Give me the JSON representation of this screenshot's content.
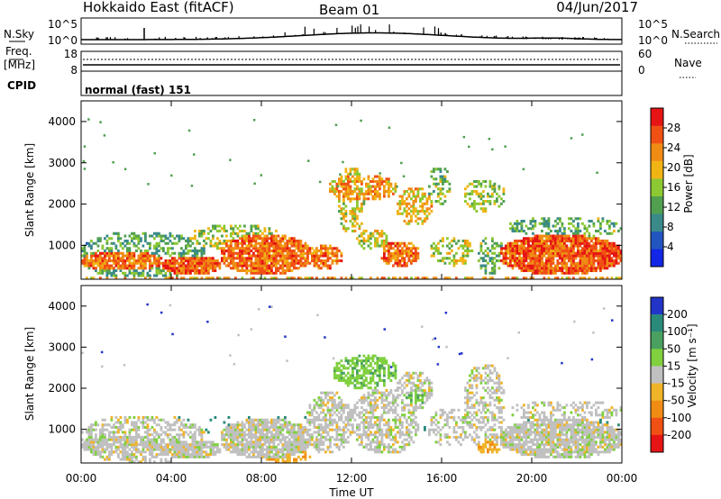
{
  "header": {
    "radar": "Hokkaido East (fitACF)",
    "beam": "Beam 01",
    "date": "04/Jun/2017"
  },
  "status_panel": {
    "nsky_label": "N.Sky",
    "nsky_ticks": [
      "10^5",
      "10^0"
    ],
    "nsearch_label": "N.Search",
    "nsearch_ticks": [
      "10^5",
      "10^0"
    ],
    "freq_label": "Freq.",
    "freq_unit": "[MHz]",
    "freq_ticks": [
      "18",
      "8"
    ],
    "nave_label": "Nave",
    "nave_ticks": [
      "60",
      "0"
    ],
    "cpid_label": "CPID",
    "cpid_value": "normal (fast) 151"
  },
  "chart_data": [
    {
      "type": "heatmap",
      "name": "Power",
      "ylabel": "Slant Range [km]",
      "xlabel": "",
      "x_tick_labels": [
        "00:00",
        "04:00",
        "08:00",
        "12:00",
        "16:00",
        "20:00",
        "00:00"
      ],
      "x_range_hours": [
        0,
        24
      ],
      "y_ticks": [
        1000,
        2000,
        3000,
        4000
      ],
      "y_range": [
        180,
        4500
      ],
      "colorbar": {
        "label": "Power [dB]",
        "ticks": [
          "4",
          "8",
          "12",
          "16",
          "20",
          "24",
          "28"
        ],
        "tick_values": [
          4,
          8,
          12,
          16,
          20,
          24,
          28
        ],
        "range": [
          0,
          32
        ],
        "colors": [
          "#1226e6",
          "#2255c0",
          "#3a8a8a",
          "#50a050",
          "#8cc832",
          "#f0b414",
          "#f08c14",
          "#f05014",
          "#e61414"
        ]
      },
      "blobs": [
        {
          "t0": 0.0,
          "t1": 5.5,
          "r0": 180,
          "r1": 1350,
          "p": 12,
          "d": 0.45
        },
        {
          "t0": 0.0,
          "t1": 3.6,
          "r0": 400,
          "r1": 850,
          "p": 25,
          "d": 0.85
        },
        {
          "t0": 3.6,
          "t1": 6.2,
          "r0": 300,
          "r1": 750,
          "p": 26,
          "d": 0.9
        },
        {
          "t0": 4.8,
          "t1": 9.0,
          "r0": 900,
          "r1": 1500,
          "p": 16,
          "d": 0.5
        },
        {
          "t0": 6.2,
          "t1": 10.2,
          "r0": 300,
          "r1": 1250,
          "p": 25,
          "d": 0.85
        },
        {
          "t0": 10.0,
          "t1": 11.6,
          "r0": 450,
          "r1": 1000,
          "p": 24,
          "d": 0.75
        },
        {
          "t0": 11.4,
          "t1": 12.6,
          "r0": 1300,
          "r1": 2900,
          "p": 18,
          "d": 0.45
        },
        {
          "t0": 11.0,
          "t1": 14.0,
          "r0": 2100,
          "r1": 2700,
          "p": 22,
          "d": 0.65
        },
        {
          "t0": 12.2,
          "t1": 13.6,
          "r0": 900,
          "r1": 1400,
          "p": 18,
          "d": 0.5
        },
        {
          "t0": 13.3,
          "t1": 15.0,
          "r0": 500,
          "r1": 1100,
          "p": 25,
          "d": 0.8
        },
        {
          "t0": 14.0,
          "t1": 15.6,
          "r0": 1500,
          "r1": 2400,
          "p": 20,
          "d": 0.55
        },
        {
          "t0": 15.4,
          "t1": 16.4,
          "r0": 2000,
          "r1": 2900,
          "p": 14,
          "d": 0.4
        },
        {
          "t0": 15.5,
          "t1": 17.4,
          "r0": 500,
          "r1": 1200,
          "p": 17,
          "d": 0.4
        },
        {
          "t0": 17.0,
          "t1": 18.8,
          "r0": 1800,
          "r1": 2600,
          "p": 16,
          "d": 0.4
        },
        {
          "t0": 17.6,
          "t1": 18.8,
          "r0": 300,
          "r1": 1200,
          "p": 13,
          "d": 0.45
        },
        {
          "t0": 18.6,
          "t1": 24.0,
          "r0": 300,
          "r1": 1250,
          "p": 26,
          "d": 0.9
        },
        {
          "t0": 19.0,
          "t1": 24.0,
          "r0": 1200,
          "r1": 1700,
          "p": 13,
          "d": 0.4
        },
        {
          "t0": 0.0,
          "t1": 24.0,
          "r0": 180,
          "r1": 260,
          "p": 22,
          "d": 0.5
        }
      ]
    },
    {
      "type": "heatmap",
      "name": "Velocity",
      "ylabel": "Slant Range [km]",
      "xlabel": "Time UT",
      "x_tick_labels": [
        "00:00",
        "04:00",
        "08:00",
        "12:00",
        "16:00",
        "20:00",
        "00:00"
      ],
      "x_range_hours": [
        0,
        24
      ],
      "y_ticks": [
        1000,
        2000,
        3000,
        4000
      ],
      "y_range": [
        180,
        4500
      ],
      "colorbar": {
        "label": "Velocity [m s⁻¹]",
        "ticks": [
          "200",
          "100",
          "50",
          "15",
          "-15",
          "-50",
          "-100",
          "-200"
        ],
        "colors": [
          "#2235c8",
          "#2a8a7a",
          "#4aa060",
          "#80d040",
          "#c0c0c0",
          "#f0b428",
          "#f08c14",
          "#f05014",
          "#e61414"
        ]
      },
      "blobs": [
        {
          "t0": 0.0,
          "t1": 5.5,
          "r0": 180,
          "r1": 1350,
          "v": 0,
          "d": 0.5
        },
        {
          "t0": 0.0,
          "t1": 3.6,
          "r0": 400,
          "r1": 850,
          "v": 0,
          "d": 0.85
        },
        {
          "t0": 3.6,
          "t1": 6.2,
          "r0": 300,
          "r1": 750,
          "v": 0,
          "d": 0.9
        },
        {
          "t0": 6.2,
          "t1": 10.2,
          "r0": 300,
          "r1": 1250,
          "v": 0,
          "d": 0.85
        },
        {
          "t0": 8.0,
          "t1": 10.2,
          "r0": 200,
          "r1": 500,
          "v": -40,
          "d": 0.5
        },
        {
          "t0": 10.0,
          "t1": 12.0,
          "r0": 400,
          "r1": 1900,
          "v": 0,
          "d": 0.6
        },
        {
          "t0": 11.2,
          "t1": 14.0,
          "r0": 2000,
          "r1": 2800,
          "v": 40,
          "d": 0.65
        },
        {
          "t0": 12.0,
          "t1": 15.0,
          "r0": 400,
          "r1": 2000,
          "v": 0,
          "d": 0.55
        },
        {
          "t0": 14.0,
          "t1": 15.6,
          "r0": 1500,
          "r1": 2400,
          "v": 0,
          "d": 0.55
        },
        {
          "t0": 14.3,
          "t1": 15.3,
          "r0": 1600,
          "r1": 1900,
          "v": 40,
          "d": 0.7
        },
        {
          "t0": 15.4,
          "t1": 17.4,
          "r0": 600,
          "r1": 1500,
          "v": 0,
          "d": 0.4
        },
        {
          "t0": 17.0,
          "t1": 18.8,
          "r0": 500,
          "r1": 2600,
          "v": 0,
          "d": 0.45
        },
        {
          "t0": 17.6,
          "t1": 18.6,
          "r0": 400,
          "r1": 700,
          "v": -40,
          "d": 0.6
        },
        {
          "t0": 18.6,
          "t1": 24.0,
          "r0": 300,
          "r1": 1250,
          "v": 0,
          "d": 0.85
        },
        {
          "t0": 19.0,
          "t1": 24.0,
          "r0": 1200,
          "r1": 1700,
          "v": 0,
          "d": 0.4
        },
        {
          "t0": 0.0,
          "t1": 24.0,
          "r0": 900,
          "r1": 1350,
          "v": 120,
          "d": 0.06
        },
        {
          "t0": 0.0,
          "t1": 24.0,
          "r0": 900,
          "r1": 1350,
          "v": -120,
          "d": 0.06
        }
      ]
    }
  ]
}
